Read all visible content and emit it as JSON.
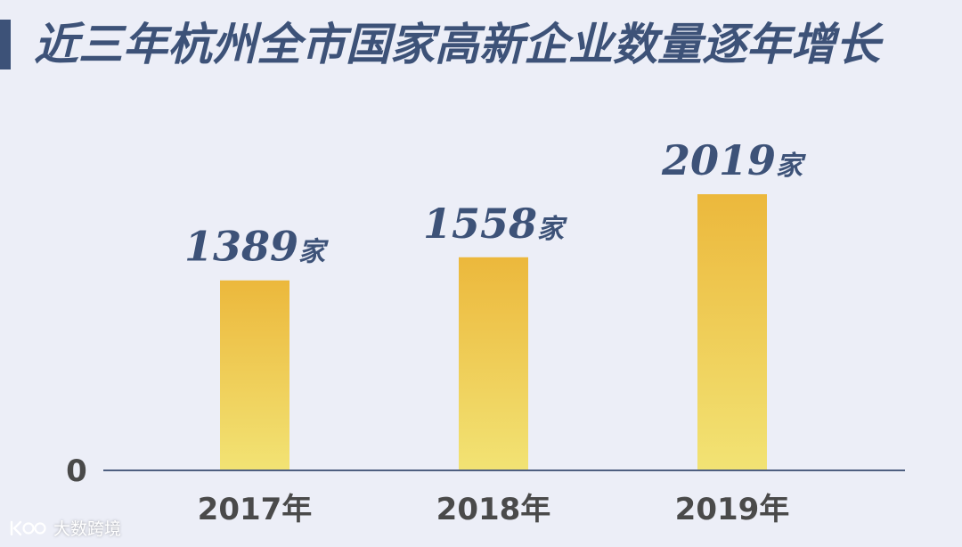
{
  "title": "近三年杭州全市国家高新企业数量逐年增长",
  "watermark": {
    "logo_text": "k00",
    "text": "大数跨境"
  },
  "colors": {
    "background": "#eceef7",
    "accent": "#3d5278",
    "bar_top": "#ecb83c",
    "bar_bottom": "#f2e374",
    "axis": "#4e5f80",
    "tick_text": "#4a4a4a"
  },
  "chart_data": {
    "type": "bar",
    "title": "近三年杭州全市国家高新企业数量逐年增长",
    "categories": [
      "2017年",
      "2018年",
      "2019年"
    ],
    "values": [
      1389,
      1558,
      2019
    ],
    "value_labels": [
      "1389",
      "1558",
      "2019"
    ],
    "value_unit": "家",
    "yticks": [
      "0"
    ],
    "ylim": [
      0,
      2019
    ],
    "xlabel": "",
    "ylabel": "",
    "grid": false,
    "legend": "none"
  }
}
